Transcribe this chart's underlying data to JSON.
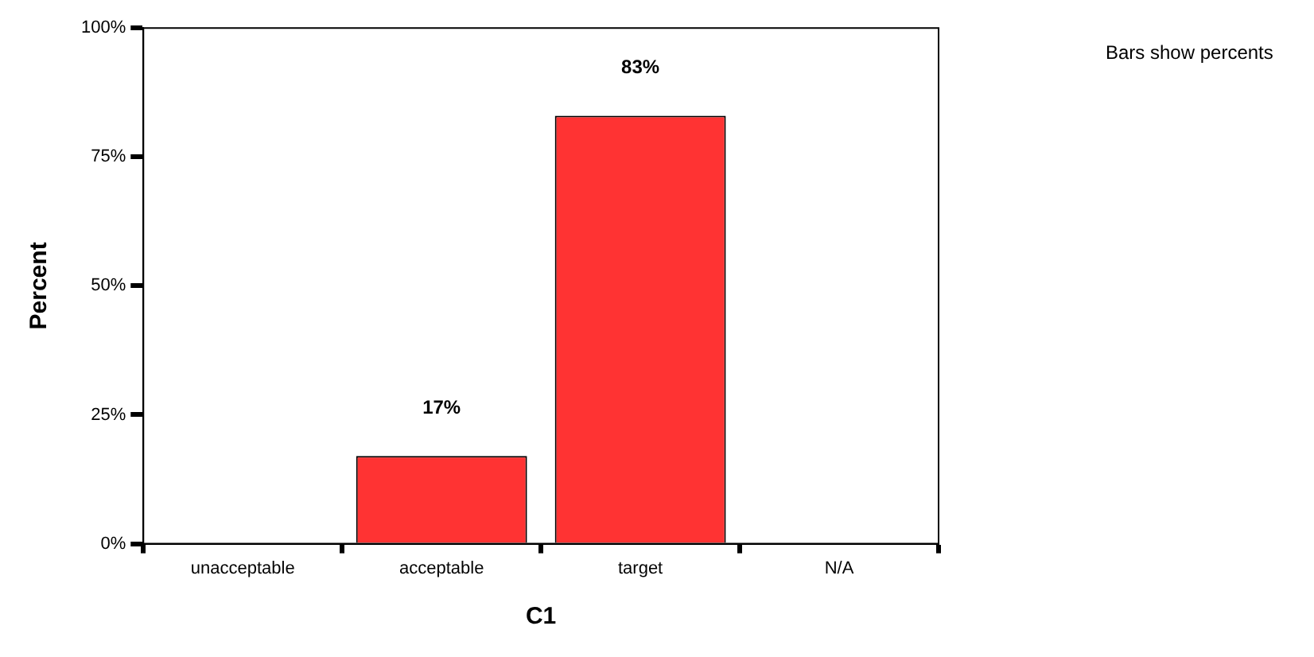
{
  "chart_data": {
    "type": "bar",
    "xlabel": "C1",
    "ylabel": "Percent",
    "categories": [
      "unacceptable",
      "acceptable",
      "target",
      "N/A"
    ],
    "values": [
      0,
      17,
      83,
      0
    ],
    "color": "#ff3333",
    "value_labels": [
      null,
      "17%",
      "83%",
      null
    ],
    "ylim": [
      0,
      100
    ],
    "yticks": [
      {
        "value": 0,
        "label": "0%"
      },
      {
        "value": 25,
        "label": "25%"
      },
      {
        "value": 50,
        "label": "50%"
      },
      {
        "value": 75,
        "label": "75%"
      },
      {
        "value": 100,
        "label": "100%"
      }
    ],
    "annotations": [
      "Bars show percents"
    ]
  }
}
